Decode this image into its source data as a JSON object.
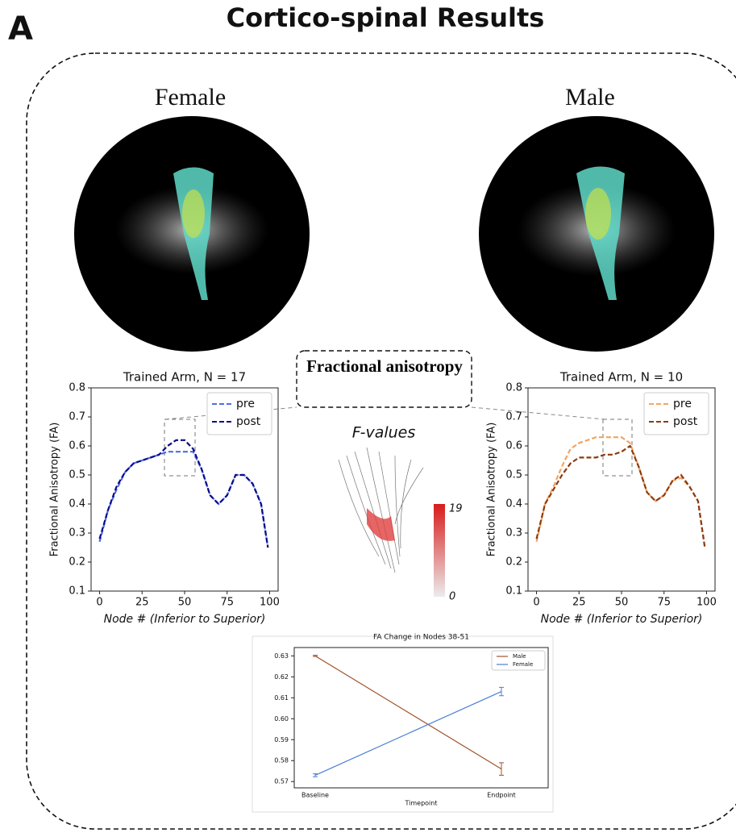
{
  "panel_label": "A",
  "title": "Cortico-spinal Results",
  "groups": [
    "Female",
    "Male"
  ],
  "fa_box": "Fractional anisotropy",
  "colorbar": {
    "title": "F-values",
    "min": 0,
    "max": 19,
    "colors": [
      "#ececec",
      "#d81b1b"
    ]
  },
  "chart_data": [
    {
      "type": "line",
      "title": "Trained Arm, N = 17",
      "xlabel": "Node # (Inferior to Superior)",
      "ylabel": "Fractional Anisotropy (FA)",
      "x": [
        0,
        5,
        10,
        15,
        20,
        25,
        30,
        35,
        40,
        45,
        50,
        55,
        60,
        65,
        70,
        75,
        80,
        85,
        90,
        95,
        99
      ],
      "series": [
        {
          "name": "pre",
          "color": "#4a6fe3",
          "values": [
            0.27,
            0.38,
            0.45,
            0.51,
            0.54,
            0.55,
            0.56,
            0.57,
            0.58,
            0.58,
            0.58,
            0.58,
            0.52,
            0.43,
            0.4,
            0.43,
            0.5,
            0.5,
            0.47,
            0.4,
            0.25
          ]
        },
        {
          "name": "post",
          "color": "#0a0a8a",
          "values": [
            0.28,
            0.38,
            0.46,
            0.51,
            0.54,
            0.55,
            0.56,
            0.57,
            0.6,
            0.62,
            0.62,
            0.59,
            0.52,
            0.43,
            0.4,
            0.43,
            0.5,
            0.5,
            0.47,
            0.4,
            0.25
          ]
        }
      ],
      "xlim": [
        -5,
        105
      ],
      "xticks": [
        0,
        25,
        50,
        75,
        100
      ],
      "ylim": [
        0.1,
        0.8
      ],
      "yticks": [
        0.1,
        0.2,
        0.3,
        0.4,
        0.5,
        0.6,
        0.7,
        0.8
      ],
      "dashed": true,
      "legend": "upper right"
    },
    {
      "type": "line",
      "title": "Trained Arm, N = 10",
      "xlabel": "Node # (Inferior to Superior)",
      "ylabel": "Fractional Anisotropy (FA)",
      "x": [
        0,
        5,
        10,
        15,
        20,
        25,
        30,
        35,
        40,
        45,
        50,
        55,
        60,
        65,
        70,
        75,
        80,
        85,
        90,
        95,
        99
      ],
      "series": [
        {
          "name": "pre",
          "color": "#f4a460",
          "values": [
            0.27,
            0.4,
            0.46,
            0.53,
            0.59,
            0.61,
            0.62,
            0.63,
            0.63,
            0.63,
            0.63,
            0.61,
            0.53,
            0.44,
            0.41,
            0.43,
            0.48,
            0.49,
            0.46,
            0.41,
            0.25
          ]
        },
        {
          "name": "post",
          "color": "#8b3a12",
          "values": [
            0.28,
            0.4,
            0.45,
            0.5,
            0.54,
            0.56,
            0.56,
            0.56,
            0.57,
            0.57,
            0.58,
            0.6,
            0.53,
            0.44,
            0.41,
            0.43,
            0.48,
            0.5,
            0.46,
            0.41,
            0.25
          ]
        }
      ],
      "xlim": [
        -5,
        105
      ],
      "xticks": [
        0,
        25,
        50,
        75,
        100
      ],
      "ylim": [
        0.1,
        0.8
      ],
      "yticks": [
        0.1,
        0.2,
        0.3,
        0.4,
        0.5,
        0.6,
        0.7,
        0.8
      ],
      "dashed": true,
      "legend": "upper right"
    },
    {
      "type": "line",
      "title": "FA Change in Nodes 38-51",
      "xlabel": "Timepoint",
      "categories": [
        "Baseline",
        "Endpoint"
      ],
      "series": [
        {
          "name": "Male",
          "color": "#a0522d",
          "values": [
            0.63,
            0.576
          ],
          "errors": [
            0.0003,
            0.003
          ]
        },
        {
          "name": "Female",
          "color": "#4a7fd4",
          "values": [
            0.573,
            0.613
          ],
          "errors": [
            0.0007,
            0.002
          ]
        }
      ],
      "ylim": [
        0.567,
        0.634
      ],
      "yticks": [
        0.57,
        0.58,
        0.59,
        {
          "value": 0.6,
          "label": "0.60"
        },
        0.61,
        0.62,
        0.63
      ],
      "dashed": false,
      "legend": "upper right"
    }
  ]
}
